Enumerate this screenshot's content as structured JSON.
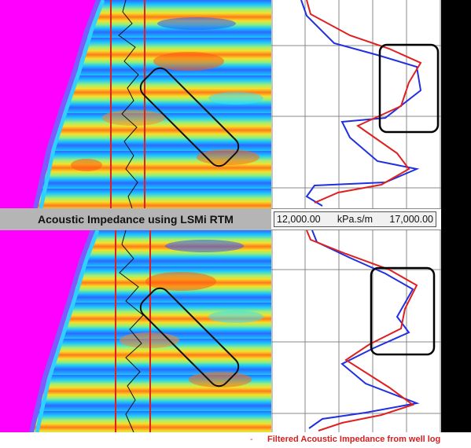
{
  "section_label": "Acoustic Impedance using LSMi RTM",
  "scale": {
    "min": "12,000.00",
    "unit": "kPa.s/m",
    "max": "17,000.00"
  },
  "footer": {
    "bullet": "-",
    "legend_text": "Filtered Acoustic Impedance from well log"
  },
  "colors": {
    "filtered_log_curve": "#e02020",
    "inverted_curve": "#2030e0",
    "highlight_box": "#000000",
    "well_marker": "#e02020",
    "background_zone": "#ff00ff"
  }
}
